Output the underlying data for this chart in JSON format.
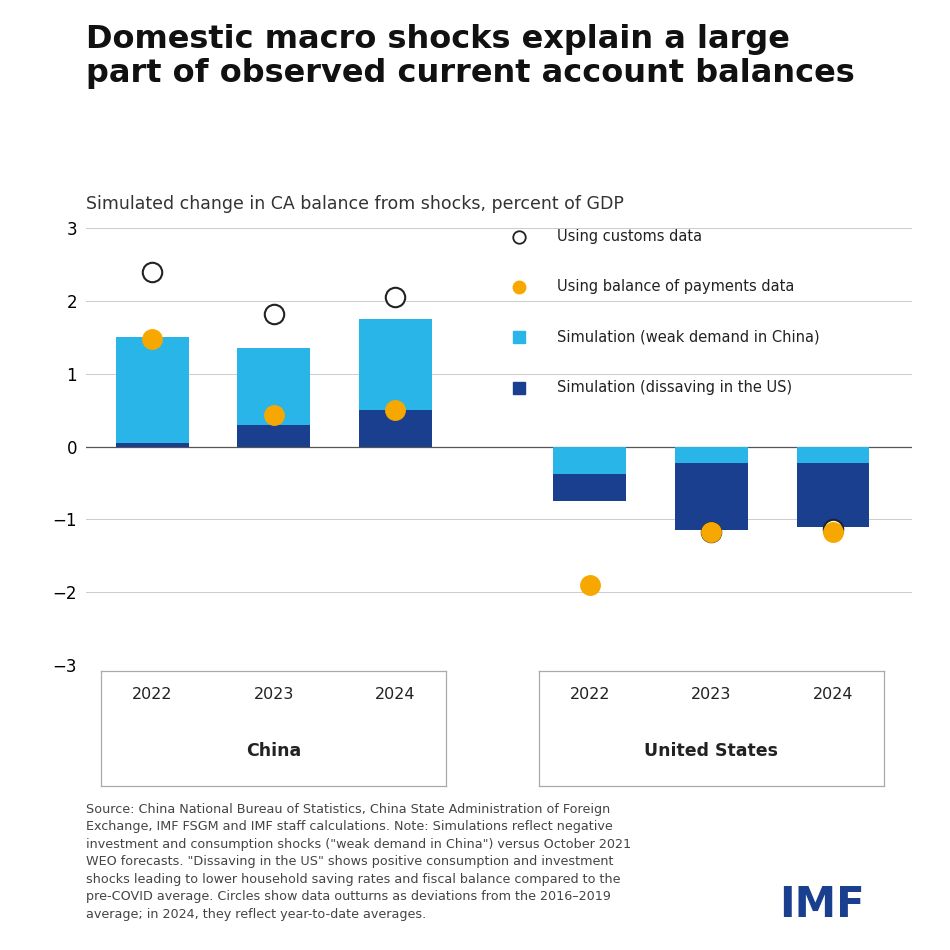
{
  "title": "Domestic macro shocks explain a large\npart of observed current account balances",
  "subtitle": "Simulated change in CA balance from shocks, percent of GDP",
  "years": [
    "2022",
    "2023",
    "2024"
  ],
  "china_dark_blue": [
    0.05,
    0.3,
    0.5
  ],
  "china_light_blue": [
    1.45,
    1.05,
    1.25
  ],
  "china_customs": [
    2.4,
    1.82,
    2.05
  ],
  "china_bop": [
    1.48,
    0.43,
    0.5
  ],
  "us_light_blue": [
    -0.38,
    -0.22,
    -0.22
  ],
  "us_dark_blue": [
    -0.37,
    -0.93,
    -0.88
  ],
  "us_customs": [
    null,
    -1.18,
    -1.13
  ],
  "us_bop": [
    -1.9,
    -1.18,
    -1.18
  ],
  "color_light_blue": "#29B5E8",
  "color_dark_blue": "#1A3F8F",
  "color_orange": "#F7A800",
  "ylim_min": -3,
  "ylim_max": 3,
  "yticks": [
    -3,
    -2,
    -1,
    0,
    1,
    2,
    3
  ],
  "legend_customs": "Using customs data",
  "legend_bop": "Using balance of payments data",
  "legend_light": "Simulation (weak demand in China)",
  "legend_dark": "Simulation (dissaving in the US)",
  "bar_width": 0.6,
  "source_text": "Source: China National Bureau of Statistics, China State Administration of Foreign\nExchange, IMF FSGM and IMF staff calculations. Note: Simulations reflect negative\ninvestment and consumption shocks (\"weak demand in China\") versus October 2021\nWEO forecasts. \"Dissaving in the US\" shows positive consumption and investment\nshocks leading to lower household saving rates and fiscal balance compared to the\npre-COVID average. Circles show data outturns as deviations from the 2016–2019\naverage; in 2024, they reflect year-to-date averages.",
  "imf_color": "#1A3F8F"
}
